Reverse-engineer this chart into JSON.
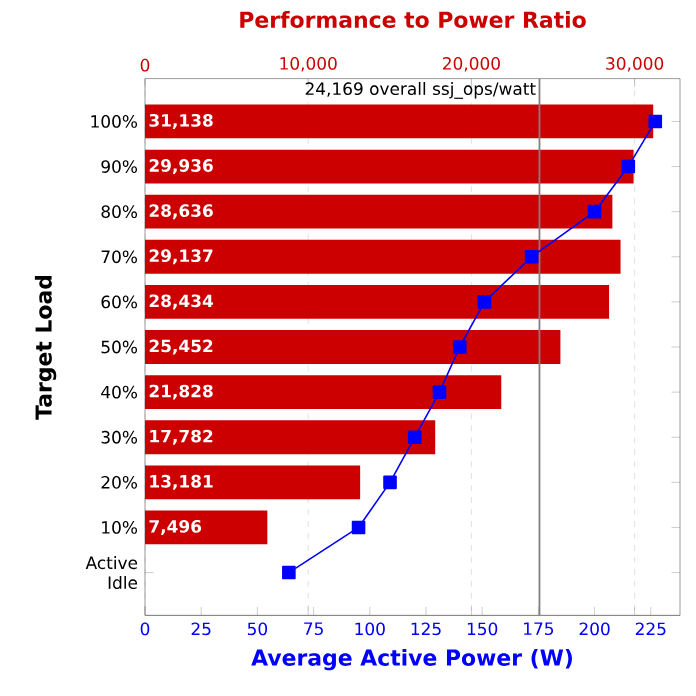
{
  "chart_data": {
    "type": "bar",
    "orientation": "horizontal",
    "title": "Performance to Power Ratio",
    "xlabel": "Average Active Power (W)",
    "ylabel": "Target Load",
    "categories": [
      "100%",
      "90%",
      "80%",
      "70%",
      "60%",
      "50%",
      "40%",
      "30%",
      "20%",
      "10%",
      "Active Idle"
    ],
    "series": [
      {
        "axis": "x2",
        "color": "#cc0000",
        "values": [
          31138,
          29936,
          28636,
          29137,
          28434,
          25452,
          21828,
          17782,
          13181,
          7496,
          null
        ],
        "value_labels": [
          "31,138",
          "29,936",
          "28,636",
          "29,137",
          "28,434",
          "25,452",
          "21,828",
          "17,782",
          "13,181",
          "7,496",
          null
        ]
      },
      {
        "type": "line",
        "color": "#0000ff",
        "values": [
          227,
          215,
          200,
          172,
          151,
          140,
          131,
          120,
          109,
          95,
          64
        ]
      }
    ],
    "x2lim": [
      0,
      32780
    ],
    "x2ticks": [
      {
        "value": 0,
        "label": "0"
      },
      {
        "value": 10000,
        "label": "10,000"
      },
      {
        "value": 20000,
        "label": "20,000"
      },
      {
        "value": 30000,
        "label": "30,000"
      }
    ],
    "xlim": [
      0,
      238
    ],
    "xticks": [
      0,
      25,
      50,
      75,
      100,
      125,
      150,
      175,
      200,
      225
    ],
    "ref_lines": [
      {
        "axis": "x2",
        "value": 24169,
        "label": "24,169 overall ssj_ops/watt",
        "color": "#808080"
      }
    ],
    "grid": "x",
    "marker": "square",
    "line_style": "solid"
  }
}
